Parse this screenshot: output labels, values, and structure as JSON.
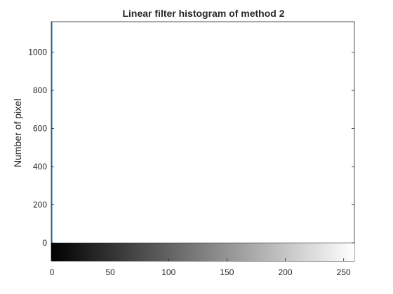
{
  "chart_data": {
    "type": "bar",
    "title": "Linear filter histogram of method 2",
    "xlabel": "",
    "ylabel": "Number of pixel",
    "xlim": [
      0,
      255
    ],
    "ylim": [
      0,
      1160
    ],
    "x_ticks": [
      0,
      50,
      100,
      150,
      200,
      250
    ],
    "x_tick_labels": [
      "0",
      "50",
      "100",
      "150",
      "200",
      "250"
    ],
    "y_ticks": [
      0,
      200,
      400,
      600,
      800,
      1000
    ],
    "y_tick_labels": [
      "0",
      "200",
      "400",
      "600",
      "800",
      "1000"
    ],
    "grid": false,
    "colorbar": "grayscale 0 (black) to 255 (white) below x-axis",
    "bar_color": "#0072BD",
    "x": [
      0,
      1,
      2,
      3,
      4,
      5,
      6,
      7,
      8,
      9,
      10,
      11,
      12,
      13,
      14,
      15,
      16,
      17,
      18,
      19,
      20,
      21,
      22,
      23,
      24,
      25,
      26,
      27,
      28,
      29,
      30,
      31,
      32,
      33,
      34,
      35,
      36,
      37,
      38,
      39,
      40,
      41,
      42,
      43,
      44,
      45,
      46,
      47,
      48,
      49,
      50,
      51,
      52,
      53,
      54,
      55,
      56,
      57,
      58,
      59,
      60,
      61,
      62,
      63,
      64,
      65,
      66,
      67,
      68,
      69,
      70,
      71,
      72,
      73,
      74,
      75,
      76,
      77,
      78,
      79,
      80,
      81,
      82,
      83,
      84,
      85,
      86,
      87,
      88,
      89,
      90,
      91,
      92,
      93,
      94,
      95,
      96,
      97,
      98,
      99,
      100,
      101,
      102,
      103,
      104,
      105,
      106,
      107,
      108,
      109,
      110,
      111,
      112,
      113,
      114,
      115,
      116,
      117,
      118,
      119,
      120,
      121,
      122,
      123,
      124,
      125,
      126,
      127,
      128,
      129,
      130,
      131,
      132,
      133,
      134,
      135,
      136,
      137,
      138,
      139,
      140,
      141,
      142,
      143,
      144,
      145,
      146,
      147,
      148,
      149,
      150,
      151,
      152,
      153,
      154,
      155,
      156,
      157,
      158,
      159,
      160,
      161,
      162,
      163,
      164,
      165,
      166,
      167,
      168,
      169,
      170,
      171,
      172,
      173,
      174,
      175,
      176,
      177,
      178,
      179,
      180,
      181,
      182,
      183,
      184,
      185,
      186,
      187,
      188,
      189,
      190,
      191,
      192,
      193,
      194,
      195,
      196,
      197,
      198,
      199,
      200,
      201,
      202,
      203,
      204,
      205,
      206,
      207,
      208,
      209,
      210,
      211,
      212,
      213,
      214,
      215,
      216,
      217,
      218,
      219,
      220,
      221,
      222,
      223,
      224,
      225,
      226,
      227,
      228,
      229,
      230,
      231,
      232,
      233,
      234,
      235,
      236,
      237,
      238,
      239,
      240,
      241,
      242,
      243,
      244,
      245,
      246,
      247,
      248,
      249,
      250,
      251,
      252,
      253,
      254,
      255
    ],
    "values": [
      1160,
      0,
      0,
      0,
      0,
      0,
      0,
      0,
      0,
      0,
      0,
      0,
      0,
      0,
      0,
      0,
      0,
      0,
      0,
      0,
      0,
      0,
      0,
      0,
      0,
      0,
      0,
      0,
      0,
      0,
      0,
      0,
      0,
      0,
      0,
      0,
      0,
      0,
      0,
      0,
      0,
      0,
      0,
      0,
      0,
      0,
      0,
      0,
      0,
      0,
      0,
      0,
      0,
      0,
      0,
      0,
      0,
      0,
      0,
      0,
      0,
      0,
      0,
      0,
      0,
      0,
      0,
      0,
      0,
      0,
      0,
      0,
      0,
      0,
      0,
      0,
      0,
      0,
      0,
      0,
      0,
      0,
      0,
      0,
      0,
      0,
      0,
      0,
      0,
      0,
      0,
      0,
      0,
      0,
      0,
      0,
      0,
      0,
      0,
      0,
      0,
      0,
      0,
      0,
      0,
      0,
      0,
      0,
      0,
      0,
      0,
      0,
      0,
      0,
      0,
      0,
      0,
      0,
      0,
      0,
      0,
      0,
      0,
      0,
      0,
      0,
      0,
      0,
      0,
      0,
      0,
      0,
      0,
      0,
      0,
      0,
      0,
      0,
      0,
      0,
      0,
      0,
      0,
      0,
      0,
      0,
      0,
      0,
      0,
      0,
      0,
      0,
      0,
      0,
      0,
      0,
      0,
      0,
      0,
      0,
      0,
      0,
      0,
      0,
      0,
      0,
      0,
      0,
      0,
      0,
      0,
      0,
      0,
      0,
      0,
      0,
      0,
      0,
      0,
      0,
      0,
      0,
      0,
      0,
      0,
      0,
      0,
      0,
      0,
      0,
      0,
      0,
      0,
      0,
      0,
      0,
      0,
      0,
      0,
      0,
      0,
      0,
      0,
      0,
      0,
      0,
      0,
      0,
      0,
      0,
      0,
      0,
      0,
      0,
      0,
      0,
      0,
      0,
      0,
      0,
      0,
      0,
      0,
      0,
      0,
      0,
      0,
      0,
      0,
      0,
      0,
      0,
      0,
      0,
      0,
      0,
      0,
      0,
      0,
      0,
      0,
      0,
      0,
      0,
      0,
      0,
      0,
      0,
      0,
      0,
      0,
      0,
      0,
      0,
      0,
      0
    ]
  }
}
